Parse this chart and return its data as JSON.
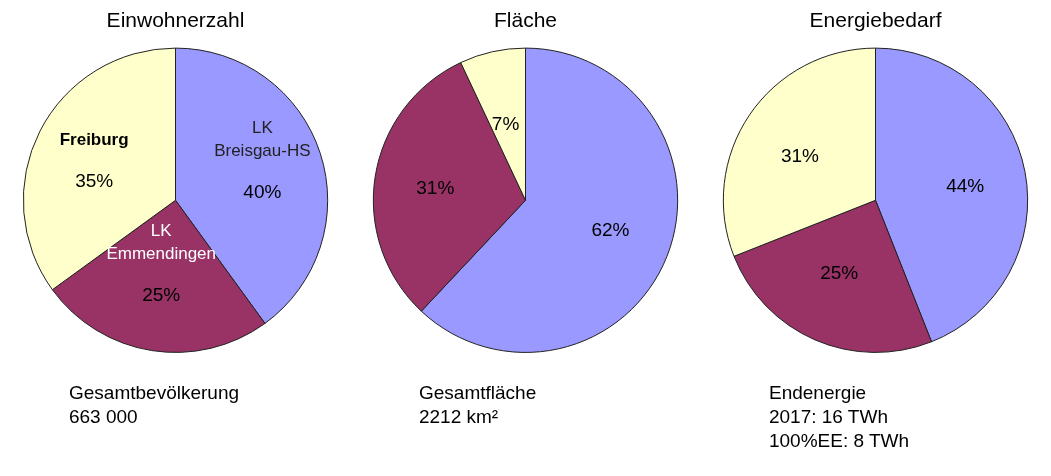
{
  "chart_data": [
    {
      "type": "pie",
      "title": "Einwohnerzahl",
      "categories": [
        "LK\nBreisgau-HS",
        "LK\nEmmendingen",
        "Freiburg"
      ],
      "values": [
        40,
        25,
        35
      ],
      "colors": [
        "#9999ff",
        "#993366",
        "#ffffcc"
      ],
      "value_labels": [
        "40%",
        "25%",
        "35%"
      ],
      "annotations": [
        "Gesamtbevölkerung\n663 000"
      ]
    },
    {
      "type": "pie",
      "title": "Fläche",
      "categories": [
        null,
        null,
        null
      ],
      "values": [
        62,
        31,
        7
      ],
      "colors": [
        "#9999ff",
        "#993366",
        "#ffffcc"
      ],
      "value_labels": [
        "62%",
        "31%",
        "7%"
      ],
      "annotations": [
        "Gesamtfläche\n2212 km²"
      ]
    },
    {
      "type": "pie",
      "title": "Energiebedarf",
      "categories": [
        null,
        null,
        null
      ],
      "values": [
        44,
        25,
        31
      ],
      "colors": [
        "#9999ff",
        "#993366",
        "#ffffcc"
      ],
      "value_labels": [
        "44%",
        "25%",
        "31%"
      ],
      "annotations": [
        "Endenergie\n2017:         16 TWh\n100%EE:   8 TWh"
      ]
    }
  ]
}
